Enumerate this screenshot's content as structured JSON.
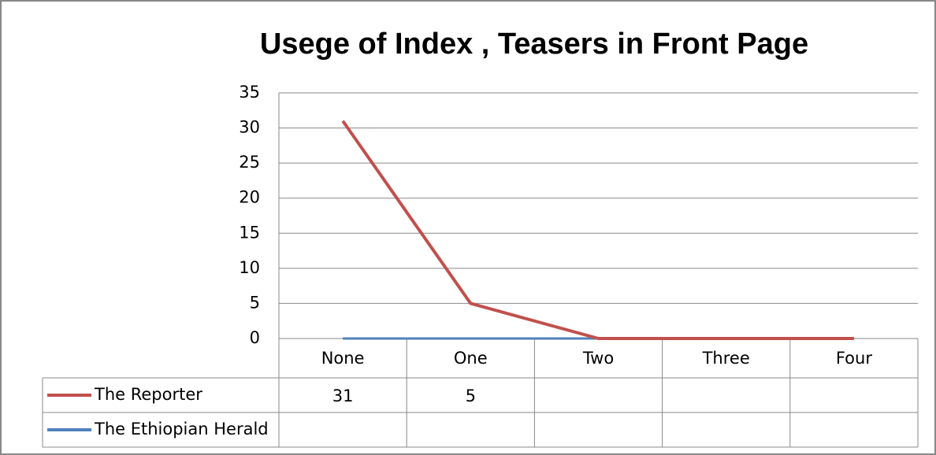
{
  "chart_data": {
    "type": "line",
    "title": "Usege of Index , Teasers in Front Page",
    "categories": [
      "None",
      "One",
      "Two",
      "Three",
      "Four"
    ],
    "series": [
      {
        "name": "The Reporter",
        "color": "#c0504d",
        "values": [
          31,
          5,
          0,
          0,
          0
        ]
      },
      {
        "name": "The Ethiopian Herald",
        "color": "#4f81bd",
        "values": [
          0,
          0,
          0,
          0,
          0
        ]
      }
    ],
    "ylim": [
      0,
      35
    ],
    "yticks": [
      0,
      5,
      10,
      15,
      20,
      25,
      30,
      35
    ],
    "grid": true,
    "data_table": true
  }
}
